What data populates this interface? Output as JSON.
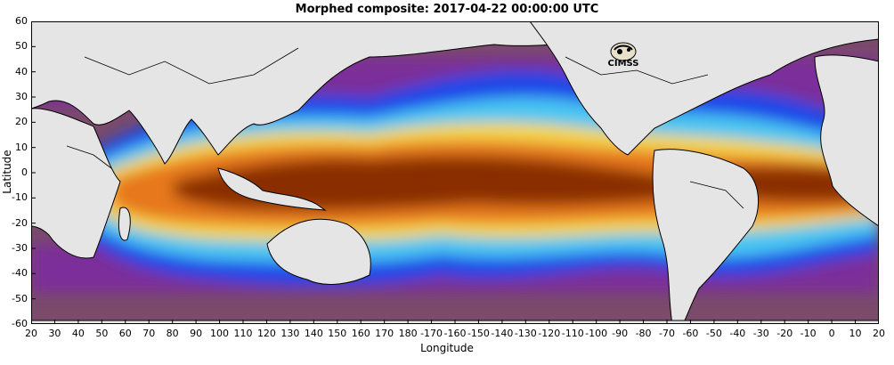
{
  "title": "Morphed composite: 2017-04-22 00:00:00 UTC",
  "chart_data": {
    "type": "heatmap",
    "xlabel": "Longitude",
    "ylabel": "Latitude",
    "x_ticks": [
      "20",
      "30",
      "40",
      "50",
      "60",
      "70",
      "80",
      "90",
      "100",
      "110",
      "120",
      "130",
      "140",
      "150",
      "160",
      "170",
      "180",
      "-170",
      "-160",
      "-150",
      "-140",
      "-130",
      "-120",
      "-110",
      "-100",
      "-90",
      "-80",
      "-70",
      "-60",
      "-50",
      "-40",
      "-30",
      "-20",
      "-10",
      "0",
      "10",
      "20"
    ],
    "y_ticks": [
      "60",
      "50",
      "40",
      "30",
      "20",
      "10",
      "0",
      "-10",
      "-20",
      "-30",
      "-40",
      "-50",
      "-60"
    ],
    "xlim": [
      20,
      380
    ],
    "ylim": [
      -60,
      60
    ],
    "grid": false,
    "legend": "none",
    "colors": {
      "land": "#e5e5e5",
      "very_dry": "#7a4b6a",
      "dry": "#7b2f9a",
      "blue": "#1c46e8",
      "cyan": "#48c6f2",
      "green": "#8fe66f",
      "yellow": "#f5d64a",
      "orange": "#e7781f",
      "dark_orange": "#8a2d05"
    }
  },
  "logo": {
    "text": "CIMSS"
  }
}
